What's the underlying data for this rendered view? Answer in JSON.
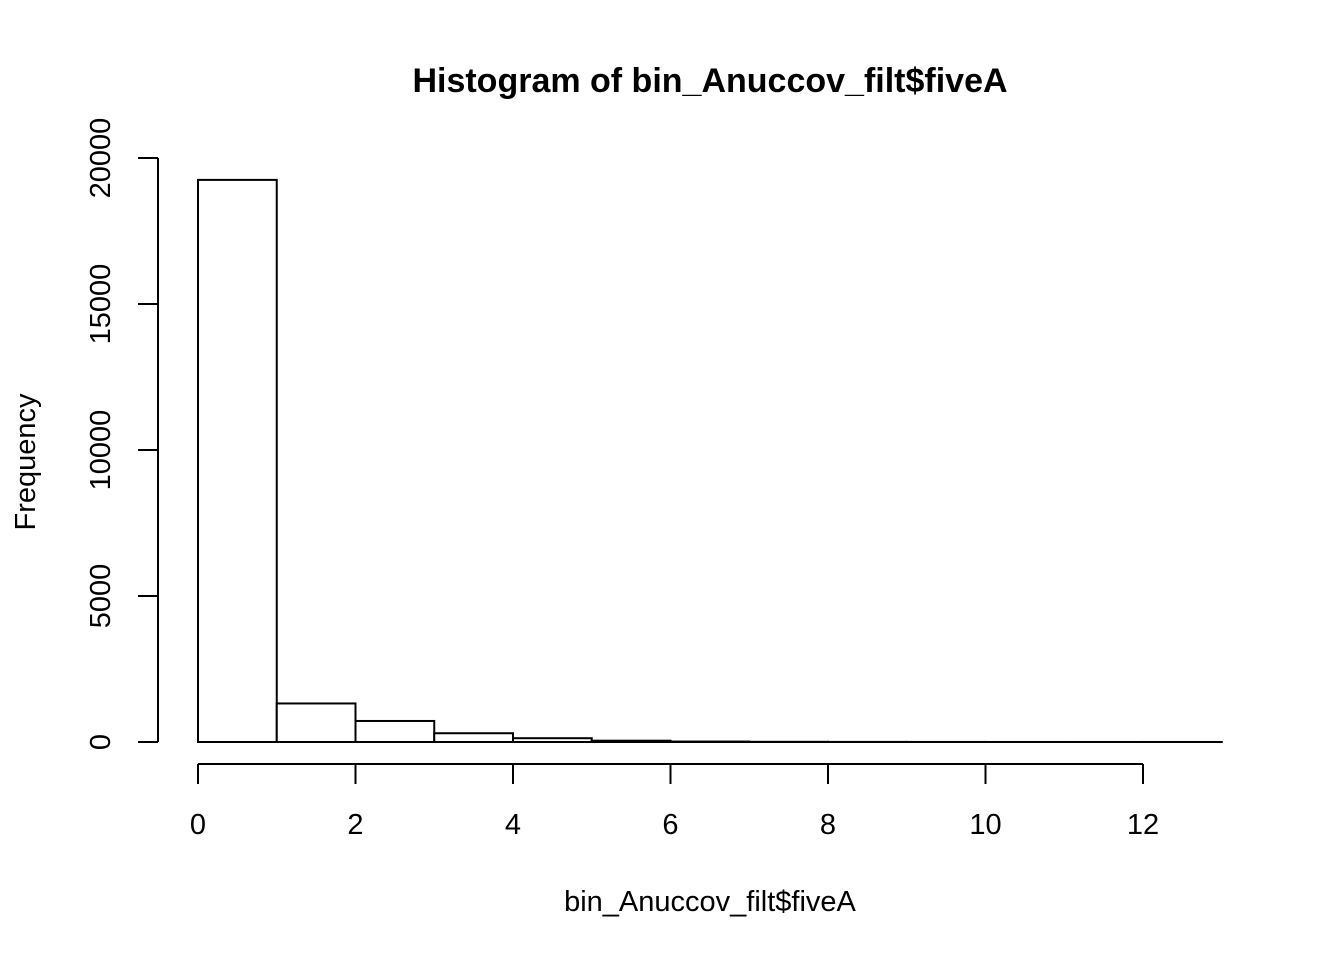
{
  "chart_data": {
    "type": "bar",
    "title": "Histogram of bin_Anuccov_filt$fiveA",
    "xlabel": "bin_Anuccov_filt$fiveA",
    "ylabel": "Frequency",
    "bins": [
      {
        "from": 0,
        "to": 1,
        "count": 19250
      },
      {
        "from": 1,
        "to": 2,
        "count": 1320
      },
      {
        "from": 2,
        "to": 3,
        "count": 720
      },
      {
        "from": 3,
        "to": 4,
        "count": 300
      },
      {
        "from": 4,
        "to": 5,
        "count": 130
      },
      {
        "from": 5,
        "to": 6,
        "count": 45
      },
      {
        "from": 6,
        "to": 7,
        "count": 15
      },
      {
        "from": 7,
        "to": 8,
        "count": 6
      },
      {
        "from": 8,
        "to": 9,
        "count": 3
      },
      {
        "from": 9,
        "to": 10,
        "count": 2
      },
      {
        "from": 10,
        "to": 11,
        "count": 1
      },
      {
        "from": 11,
        "to": 12,
        "count": 1
      },
      {
        "from": 12,
        "to": 13,
        "count": 1
      }
    ],
    "xlim": [
      0,
      13
    ],
    "ylim": [
      0,
      20000
    ],
    "xticks": [
      0,
      2,
      4,
      6,
      8,
      10,
      12
    ],
    "xtick_labels": [
      "0",
      "2",
      "4",
      "6",
      "8",
      "10",
      "12"
    ],
    "yticks": [
      0,
      5000,
      10000,
      15000,
      20000
    ],
    "ytick_labels": [
      "0",
      "5000",
      "10000",
      "15000",
      "20000"
    ],
    "grid": false,
    "legend": "none"
  }
}
